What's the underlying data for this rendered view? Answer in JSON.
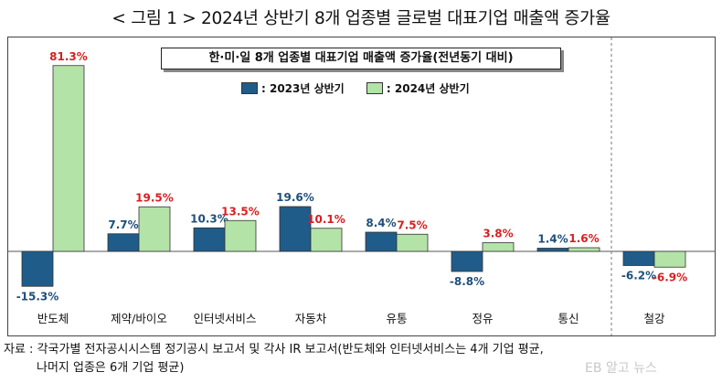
{
  "figure_title": "< 그림 1 > 2024년 상반기 8개 업종별 글로벌 대표기업 매출액 증가율",
  "colors": {
    "series_2023": "#1f5c8a",
    "series_2024": "#b4e3a8",
    "label_2023": "#1f4f7a",
    "label_2024": "#d62020",
    "axis": "#555555"
  },
  "source": {
    "line1": "자료 : 각국가별 전자공시시스템 정기공시 보고서 및 각사 IR 보고서(반도체와 인터넷서비스는 4개 기업 평균,",
    "line2": "나머지 업종은 6개 기업 평균)"
  },
  "watermark": "EB 알고 뉴스",
  "chart_data": {
    "type": "bar",
    "title": "한·미·일 8개 업종별 대표기업 매출액 증가율(전년동기 대비)",
    "xlabel": "",
    "ylabel": "",
    "categories": [
      "반도체",
      "제약/바이오",
      "인터넷서비스",
      "자동차",
      "유통",
      "정유",
      "통신",
      "철강"
    ],
    "series": [
      {
        "name": ": 2023년 상반기",
        "values": [
          -15.3,
          7.7,
          10.3,
          19.6,
          8.4,
          -8.8,
          1.4,
          -6.2
        ],
        "labels": [
          "-15.3%",
          "7.7%",
          "10.3%",
          "19.6%",
          "8.4%",
          "-8.8%",
          "1.4%",
          "-6.2%"
        ]
      },
      {
        "name": ": 2024년 상반기",
        "values": [
          81.3,
          19.5,
          13.5,
          10.1,
          7.5,
          3.8,
          1.6,
          -6.9
        ],
        "labels": [
          "81.3%",
          "19.5%",
          "13.5%",
          "10.1%",
          "7.5%",
          "3.8%",
          "1.6%",
          "-6.9%"
        ]
      }
    ],
    "legend_position": "top-center",
    "grid": false,
    "separator_before_last_category": true
  }
}
